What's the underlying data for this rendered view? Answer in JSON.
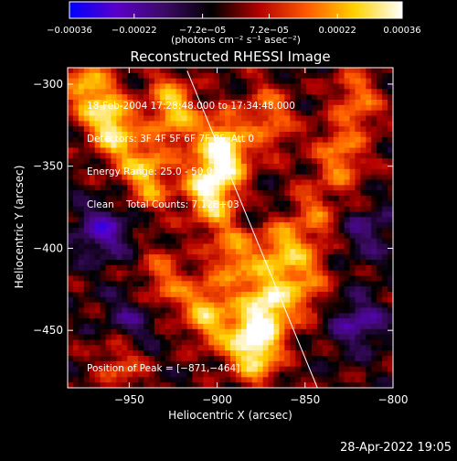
{
  "chart_data": {
    "type": "heatmap",
    "title": "Reconstructed RHESSI Image",
    "xlabel": "Heliocentric X (arcsec)",
    "ylabel": "Heliocentric Y (arcsec)",
    "xlim": [
      -985,
      -800
    ],
    "ylim": [
      -485,
      -290
    ],
    "x_ticks": [
      -950,
      -900,
      -850,
      -800
    ],
    "x_tick_labels": [
      "−950",
      "−900",
      "−850",
      "−800"
    ],
    "y_ticks": [
      -300,
      -350,
      -400,
      -450
    ],
    "y_tick_labels": [
      "−300",
      "−350",
      "−400",
      "−450"
    ],
    "colorbar": {
      "label": "(photons cm⁻² s⁻¹ asec⁻²)",
      "range": [
        -0.00036,
        0.00036
      ],
      "ticks": [
        -0.00036,
        -0.00022,
        -7.2e-05,
        7.2e-05,
        0.00022,
        0.00036
      ],
      "tick_labels": [
        "−0.00036",
        "−0.00022",
        "−7.2e−05",
        "7.2e−05",
        "0.00022",
        "0.00036"
      ],
      "colormap": [
        "#0000ff",
        "#5a00c8",
        "#3c0a64",
        "#000000",
        "#b40000",
        "#ff5a00",
        "#ffd200",
        "#ffffff"
      ]
    },
    "info_lines": [
      "18-Feb-2004 17:28:48.000 to 17:34:48.000",
      "Detectors: 3F 4F 5F 6F 7F 8F, Att 0",
      "Energy Range: 25.0 - 50.0 keV",
      "Clean    Total Counts: 7.12E+03"
    ],
    "peak_label": "Position of Peak = [−871,−464]",
    "limb_line": {
      "points": [
        [
          -917,
          -292
        ],
        [
          -843,
          -485
        ]
      ]
    },
    "sources": [
      {
        "x": -880,
        "y": -460,
        "intensity": 1.0
      },
      {
        "x": -895,
        "y": -340,
        "intensity": 0.95
      },
      {
        "x": -960,
        "y": -325,
        "intensity": 0.85
      },
      {
        "x": -905,
        "y": -365,
        "intensity": 0.9
      },
      {
        "x": -870,
        "y": -435,
        "intensity": 0.85
      },
      {
        "x": -940,
        "y": -355,
        "intensity": 0.7
      },
      {
        "x": -925,
        "y": -315,
        "intensity": 0.75
      },
      {
        "x": -865,
        "y": -395,
        "intensity": 0.65
      },
      {
        "x": -905,
        "y": -440,
        "intensity": 0.7
      },
      {
        "x": -830,
        "y": -345,
        "intensity": 0.55
      },
      {
        "x": -975,
        "y": -300,
        "intensity": 0.6
      },
      {
        "x": -890,
        "y": -405,
        "intensity": 0.55
      },
      {
        "x": -930,
        "y": -420,
        "intensity": 0.45
      },
      {
        "x": -850,
        "y": -420,
        "intensity": 0.5
      },
      {
        "x": -820,
        "y": -310,
        "intensity": 0.5
      },
      {
        "x": -955,
        "y": -470,
        "intensity": 0.4
      },
      {
        "x": -845,
        "y": -380,
        "intensity": 0.45
      },
      {
        "x": -870,
        "y": -320,
        "intensity": 0.5
      }
    ],
    "negative_sources": [
      {
        "x": -965,
        "y": -390,
        "intensity": 0.8
      },
      {
        "x": -820,
        "y": -445,
        "intensity": 0.7
      },
      {
        "x": -950,
        "y": -445,
        "intensity": 0.55
      },
      {
        "x": -815,
        "y": -390,
        "intensity": 0.5
      },
      {
        "x": -870,
        "y": -380,
        "intensity": 0.45
      }
    ]
  },
  "footer": {
    "timestamp": "28-Apr-2022 19:05"
  }
}
